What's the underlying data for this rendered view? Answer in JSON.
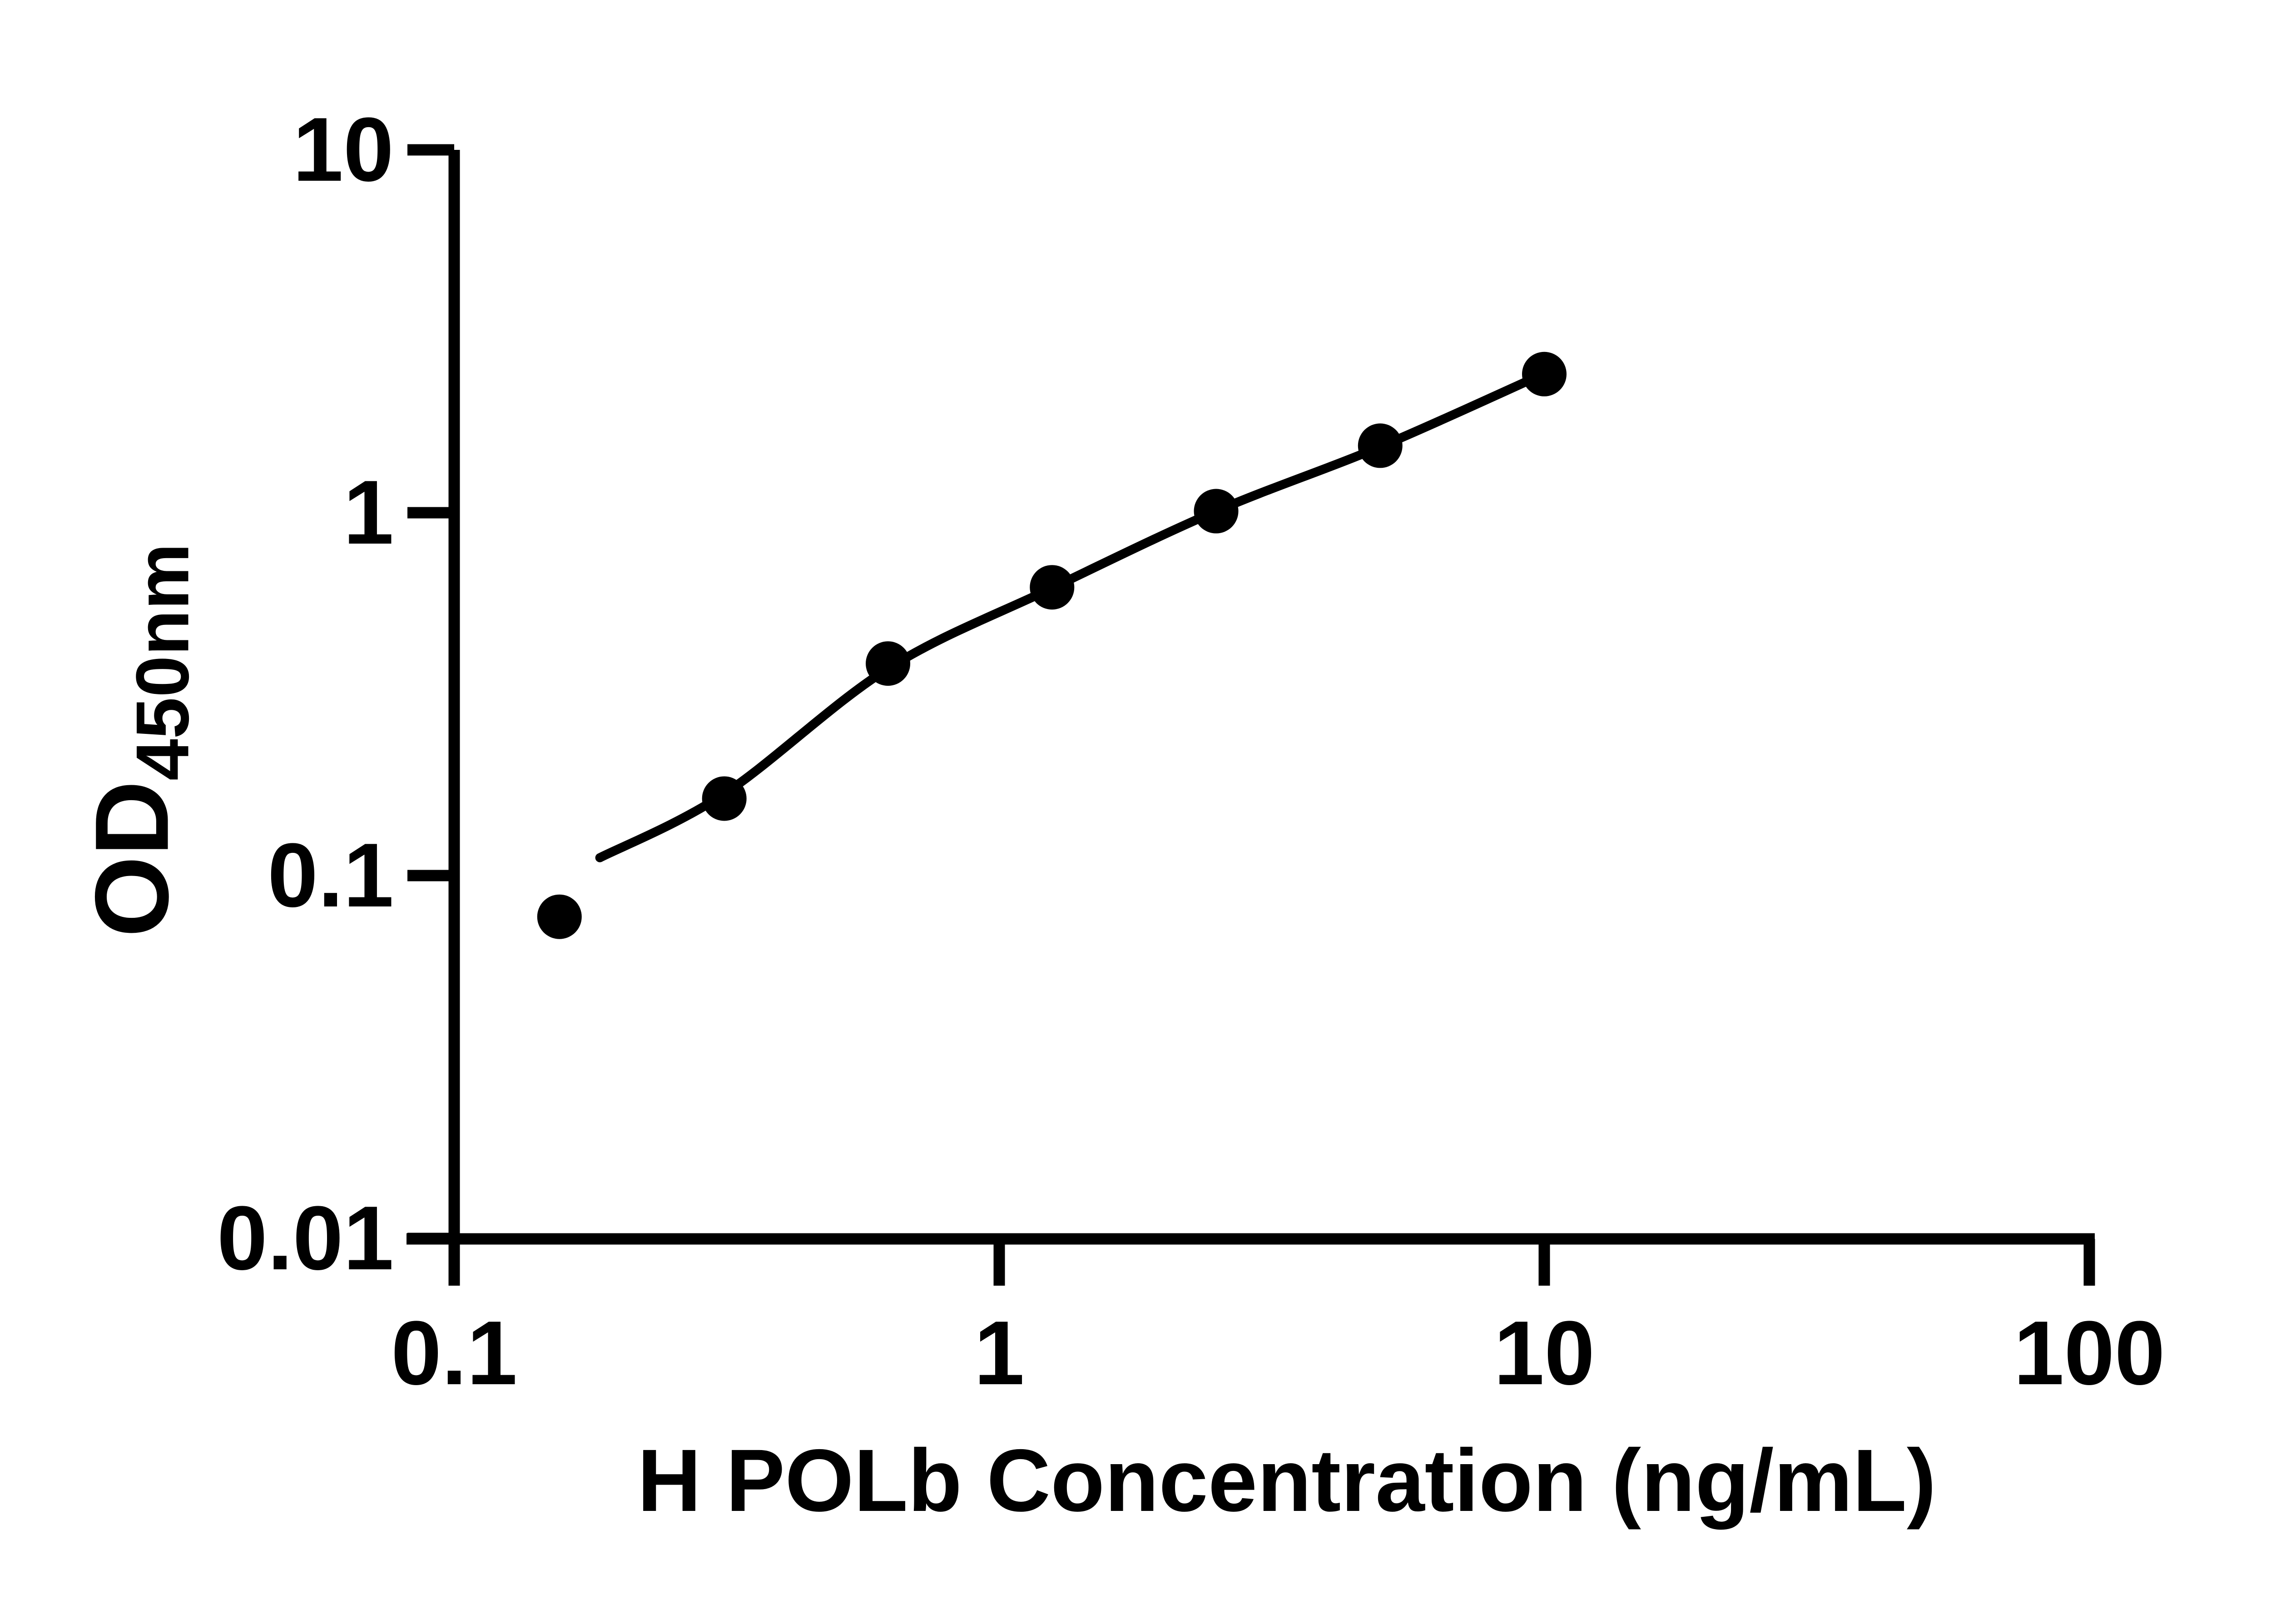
{
  "figure": {
    "background_color": "#ffffff",
    "ink_color": "#000000"
  },
  "chart_data": {
    "type": "scatter",
    "title": "",
    "xlabel": "H POLb Concentration (ng/mL)",
    "ylabel_main": "OD",
    "ylabel_sub": "450nm",
    "x_scale": "log",
    "y_scale": "log",
    "xlim": [
      0.1,
      100
    ],
    "ylim": [
      0.01,
      10
    ],
    "grid": false,
    "legend": false,
    "x_ticks": [
      {
        "value": 0.1,
        "label": "0.1"
      },
      {
        "value": 1,
        "label": "1"
      },
      {
        "value": 10,
        "label": "10"
      },
      {
        "value": 100,
        "label": "100"
      }
    ],
    "y_ticks": [
      {
        "value": 10,
        "label": "10"
      },
      {
        "value": 1,
        "label": "1"
      },
      {
        "value": 0.1,
        "label": "0.1"
      },
      {
        "value": 0.01,
        "label": "0.01"
      }
    ],
    "series": [
      {
        "name": "standard curve data points",
        "marker": "filled-circle",
        "color": "#000000",
        "points": [
          {
            "conc": 0.156,
            "od": 0.077
          },
          {
            "conc": 0.313,
            "od": 0.163
          },
          {
            "conc": 0.625,
            "od": 0.384
          },
          {
            "conc": 1.25,
            "od": 0.623
          },
          {
            "conc": 2.5,
            "od": 1.01
          },
          {
            "conc": 5,
            "od": 1.53
          },
          {
            "conc": 10,
            "od": 2.41
          }
        ]
      }
    ],
    "fit_line": {
      "name": "fitted standard curve",
      "color": "#000000",
      "points": [
        [
          0.185,
          0.112
        ],
        [
          0.313,
          0.168
        ],
        [
          0.625,
          0.372
        ],
        [
          1.25,
          0.62
        ],
        [
          2.5,
          1.01
        ],
        [
          5,
          1.52
        ],
        [
          10,
          2.42
        ]
      ]
    }
  }
}
